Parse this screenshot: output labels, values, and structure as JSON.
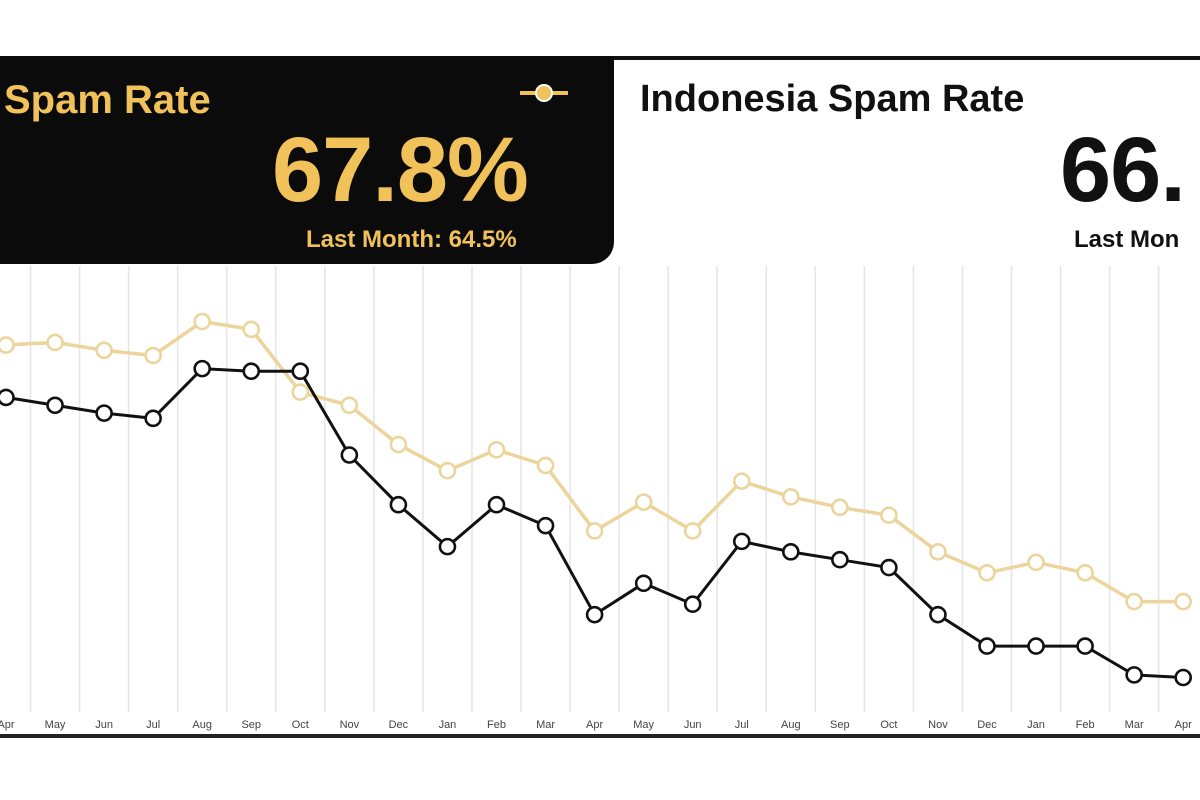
{
  "cards": {
    "dark": {
      "title": "Spam Rate",
      "value": "67.8%",
      "last": "Last Month: 64.5%"
    },
    "light": {
      "title": "Indonesia Spam Rate",
      "value": "66.",
      "last": "Last Mon"
    }
  },
  "colors": {
    "gold": "#f2c25a",
    "goldLine": "#ecd59c",
    "black": "#111111",
    "grid": "#e6e6e6"
  },
  "chart_data": {
    "type": "line",
    "x": [
      "Apr",
      "May",
      "Jun",
      "Jul",
      "Aug",
      "Sep",
      "Oct",
      "Nov",
      "Dec",
      "Jan",
      "Feb",
      "Mar",
      "Apr",
      "May",
      "Jun",
      "Jul",
      "Aug",
      "Sep",
      "Oct",
      "Nov",
      "Dec",
      "Jan",
      "Feb",
      "Mar",
      "Apr"
    ],
    "series": [
      {
        "color": "gold",
        "values": [
          71.4,
          71.5,
          71.2,
          71.0,
          72.3,
          72.0,
          69.6,
          69.1,
          67.6,
          66.6,
          67.4,
          66.8,
          64.3,
          65.4,
          64.3,
          66.2,
          65.6,
          65.2,
          64.9,
          63.5,
          62.7,
          63.1,
          62.7,
          61.6,
          61.6
        ]
      },
      {
        "color": "black",
        "values": [
          69.4,
          69.1,
          68.8,
          68.6,
          70.5,
          70.4,
          70.4,
          67.2,
          65.3,
          63.7,
          65.3,
          64.5,
          61.1,
          62.3,
          61.5,
          63.9,
          63.5,
          63.2,
          62.9,
          61.1,
          59.9,
          59.9,
          59.9,
          58.8,
          58.7
        ]
      }
    ],
    "ylim": [
      57,
      74
    ],
    "grid": "vertical"
  }
}
